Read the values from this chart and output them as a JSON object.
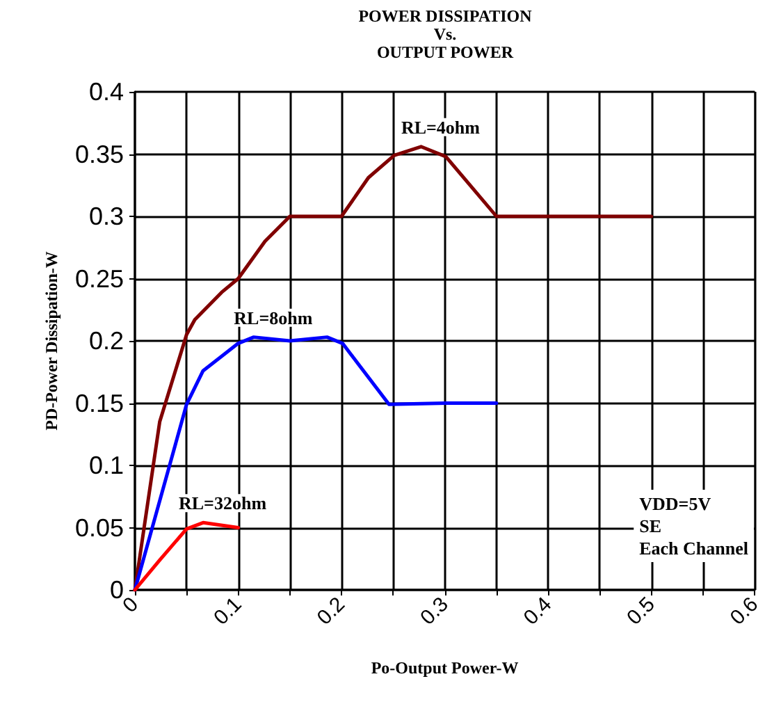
{
  "chart_data": {
    "type": "line",
    "title": "POWER DISSIPATION\nVs.\nOUTPUT POWER",
    "xlabel": "Po-Output Power-W",
    "ylabel": "PD-Power Dissipation-W",
    "xlim": [
      0,
      0.6
    ],
    "ylim": [
      0,
      0.4
    ],
    "xticks": [
      0,
      {
        "value": 0.05,
        "label": null
      },
      0.1,
      {
        "value": 0.15,
        "label": null
      },
      0.2,
      {
        "value": 0.25,
        "label": null
      },
      0.3,
      {
        "value": 0.35,
        "label": null
      },
      0.4,
      {
        "value": 0.45,
        "label": null
      },
      0.5,
      {
        "value": 0.55,
        "label": null
      },
      0.6
    ],
    "yticks": [
      0,
      0.05,
      0.1,
      0.15,
      0.2,
      0.25,
      0.3,
      0.35,
      0.4
    ],
    "grid": true,
    "marker": "none",
    "line_style": "solid",
    "series": [
      {
        "name": "RL=4ohm",
        "color": "#800000",
        "x": [
          0,
          0.024,
          0.05,
          0.058,
          0.084,
          0.1,
          0.126,
          0.15,
          0.2,
          0.226,
          0.251,
          0.277,
          0.301,
          0.35,
          0.5
        ],
        "values": [
          0,
          0.135,
          0.205,
          0.217,
          0.239,
          0.25,
          0.28,
          0.3,
          0.3,
          0.331,
          0.349,
          0.356,
          0.348,
          0.3,
          0.3
        ]
      },
      {
        "name": "RL=8ohm",
        "color": "#0000ff",
        "x": [
          0,
          0.05,
          0.066,
          0.1,
          0.115,
          0.15,
          0.186,
          0.201,
          0.246,
          0.301,
          0.35
        ],
        "values": [
          0,
          0.149,
          0.176,
          0.198,
          0.203,
          0.2,
          0.203,
          0.198,
          0.149,
          0.15,
          0.15
        ]
      },
      {
        "name": "RL=32ohm",
        "color": "#ff0000",
        "x": [
          0,
          0.024,
          0.05,
          0.066,
          0.1
        ],
        "values": [
          0,
          0.024,
          0.049,
          0.054,
          0.05
        ]
      }
    ],
    "annotations": [
      "VDD=5V\nSE\nEach Channel"
    ]
  }
}
